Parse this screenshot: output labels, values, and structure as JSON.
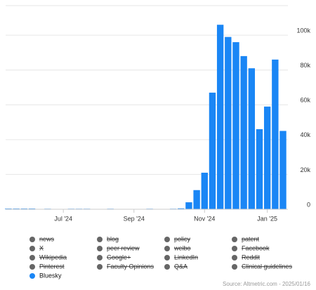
{
  "chart_data": {
    "type": "bar",
    "categories": [
      null,
      null,
      null,
      null,
      null,
      null,
      null,
      "Jul '24",
      null,
      null,
      null,
      null,
      null,
      null,
      null,
      null,
      "Sep '24",
      null,
      null,
      null,
      null,
      null,
      null,
      null,
      null,
      "Nov '24",
      null,
      null,
      null,
      null,
      null,
      null,
      null,
      "Jan '25",
      null,
      null
    ],
    "series": [
      {
        "name": "Bluesky",
        "color": "#1a86f5",
        "values": [
          400,
          400,
          400,
          400,
          0,
          300,
          0,
          0,
          300,
          300,
          300,
          0,
          0,
          300,
          0,
          0,
          0,
          0,
          300,
          0,
          0,
          300,
          500,
          4000,
          11000,
          21000,
          67000,
          106000,
          99000,
          96000,
          88000,
          81000,
          46000,
          59000,
          86000,
          45000
        ]
      }
    ],
    "hidden_series": [
      "news",
      "blog",
      "policy",
      "patent",
      "X",
      "peer review",
      "weibo",
      "Facebook",
      "Wikipedia",
      "Google+",
      "LinkedIn",
      "Reddit",
      "Pinterest",
      "Faculty Opinions",
      "Q&A",
      "Clinical guidelines"
    ],
    "hidden_color": "#666666",
    "ylim": [
      0,
      117000
    ],
    "yticks": [
      0,
      {
        "value": 20000,
        "label": "20k"
      },
      {
        "value": 40000,
        "label": "40k"
      },
      {
        "value": 60000,
        "label": "60k"
      },
      {
        "value": 80000,
        "label": "80k"
      },
      {
        "value": 100000,
        "label": "100k"
      }
    ],
    "grid": true,
    "source": "Source: Altmetric.com - 2025/01/16"
  }
}
